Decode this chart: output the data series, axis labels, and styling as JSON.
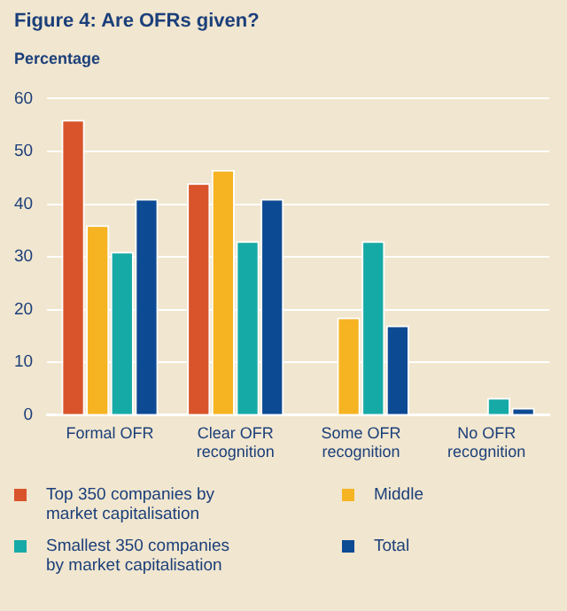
{
  "chart_data": {
    "type": "bar",
    "title": "Figure 4: Are OFRs given?",
    "ylabel": "Percentage",
    "categories": [
      "Formal OFR",
      "Clear OFR recognition",
      "Some OFR recognition",
      "No OFR recognition"
    ],
    "series": [
      {
        "name": "Top 350 companies by market capitalisation",
        "color": "#d9542b",
        "values": [
          56,
          44,
          0,
          0
        ]
      },
      {
        "name": "Middle",
        "color": "#f6b422",
        "values": [
          36,
          46.5,
          18.5,
          0
        ]
      },
      {
        "name": "Smallest 350 companies by market capitalisation",
        "color": "#16aaa6",
        "values": [
          31,
          33,
          33,
          3.3
        ]
      },
      {
        "name": "Total",
        "color": "#0d4a94",
        "values": [
          41,
          41,
          17,
          1.4
        ]
      }
    ],
    "ylim": [
      0,
      60
    ],
    "yticks": [
      0,
      10,
      20,
      30,
      40,
      50,
      60
    ],
    "grid": "y",
    "legend": "bottom"
  }
}
